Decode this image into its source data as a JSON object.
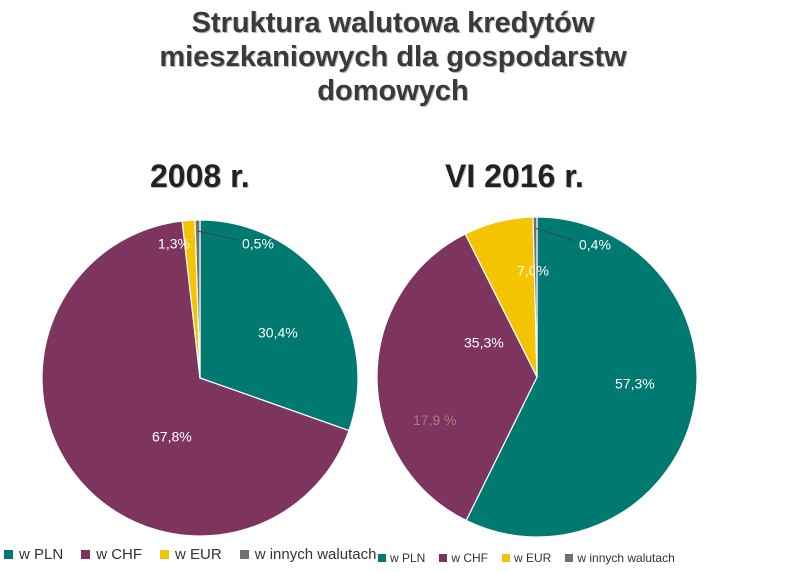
{
  "title": "Struktura walutowa kredytów mieszkaniowych dla gospodarstw domowych",
  "title_lines": [
    "Struktura walutowa kredytów",
    "mieszkaniowych dla gospodarstw",
    "domowych"
  ],
  "colors": {
    "PLN": "#007a70",
    "CHF": "#7d3560",
    "EUR": "#f5c400",
    "other": "#707070"
  },
  "ghost_label": "17,9 %",
  "chart_data": [
    {
      "type": "pie",
      "title": "2008 r.",
      "slices": [
        {
          "name": "w PLN",
          "value": 30.4,
          "label": "30,4%"
        },
        {
          "name": "w CHF",
          "value": 67.8,
          "label": "67,8%"
        },
        {
          "name": "w EUR",
          "value": 1.3,
          "label": "1,3%"
        },
        {
          "name": "w innych walutach",
          "value": 0.5,
          "label": "0,5%"
        }
      ],
      "legend": [
        "w PLN",
        "w CHF",
        "w EUR",
        "w innych walutach"
      ],
      "legend_position": "bottom"
    },
    {
      "type": "pie",
      "title": "VI 2016 r.",
      "slices": [
        {
          "name": "w PLN",
          "value": 57.3,
          "label": "57,3%"
        },
        {
          "name": "w CHF",
          "value": 35.3,
          "label": "35,3%"
        },
        {
          "name": "w EUR",
          "value": 7.0,
          "label": "7,0%"
        },
        {
          "name": "w innych walutach",
          "value": 0.4,
          "label": "0,4%"
        }
      ],
      "legend": [
        "w PLN",
        "w CHF",
        "w EUR",
        "w innych walutach"
      ],
      "legend_position": "bottom"
    }
  ]
}
